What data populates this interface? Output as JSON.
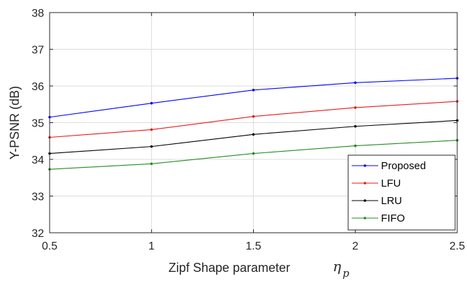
{
  "chart_data": {
    "type": "line",
    "x": [
      0.5,
      1,
      1.5,
      2,
      2.5
    ],
    "x_ticks": [
      "0.5",
      "1",
      "1.5",
      "2",
      "2.5"
    ],
    "y_ticks": [
      "32",
      "33",
      "34",
      "35",
      "36",
      "37",
      "38"
    ],
    "xlim": [
      0.5,
      2.5
    ],
    "ylim": [
      32,
      38
    ],
    "grid": true,
    "legend_position": "bottom-right",
    "xlabel": "Zipf Shape parameter",
    "xlabel_symbol": "η",
    "xlabel_subscript": "p",
    "ylabel": "Y-PSNR (dB)",
    "series": [
      {
        "name": "Proposed",
        "color": "#0000ff",
        "values": [
          35.15,
          35.53,
          35.89,
          36.09,
          36.21
        ]
      },
      {
        "name": "LFU",
        "color": "#e41a1c",
        "values": [
          34.6,
          34.81,
          35.17,
          35.41,
          35.58
        ]
      },
      {
        "name": "LRU",
        "color": "#000000",
        "values": [
          34.16,
          34.35,
          34.68,
          34.9,
          35.06
        ]
      },
      {
        "name": "FIFO",
        "color": "#228b22",
        "values": [
          33.73,
          33.88,
          34.16,
          34.37,
          34.52
        ]
      }
    ]
  }
}
